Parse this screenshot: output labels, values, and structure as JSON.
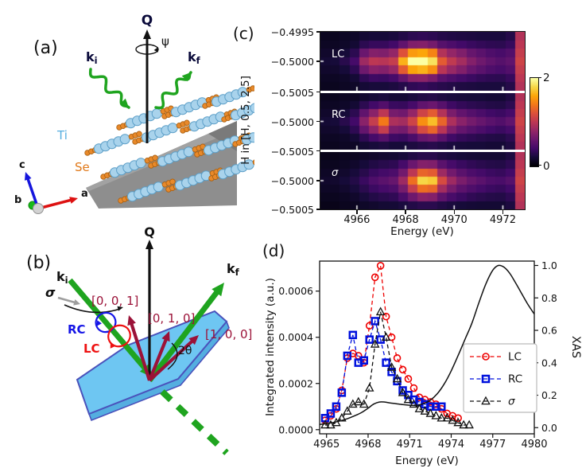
{
  "panel_a": {
    "label": "(a)",
    "q": "Q",
    "psi": "ψ",
    "ki_base": "k",
    "ki_sub": "i",
    "kf_base": "k",
    "kf_sub": "f",
    "ti": "Ti",
    "se": "Se",
    "axis_c": "c",
    "axis_a": "a",
    "axis_b": "b",
    "colors": {
      "ti_atom": "#a9d3ec",
      "ti_stroke": "#5b9ec7",
      "se_atom": "#e8892a",
      "se_stroke": "#a86012",
      "green": "#1fa41f",
      "label_navy": "#0a0a3a",
      "ti_label": "#56aee0",
      "se_label": "#e07818",
      "wedge": "#8e8e8e",
      "wedge_dark": "#7a7a7a",
      "wedge_light": "#a2a2a2",
      "axis_c_color": "#1515dd",
      "axis_a_color": "#dd1111",
      "axis_b_color": "#18bb18"
    }
  },
  "panel_b": {
    "label": "(b)",
    "q": "Q",
    "ki_base": "k",
    "ki_sub": "i",
    "kf_base": "k",
    "kf_sub": "f",
    "sigma": "σ",
    "rc": "RC",
    "lc": "LC",
    "dir_001": "[0, 0, 1]",
    "dir_010": "[0, 1, 0]",
    "dir_100": "[1, 0, 0]",
    "two_theta": "2θ",
    "colors": {
      "plate_fill": "#6ec6f2",
      "plate_side": "#54aee0",
      "plate_stroke": "#4a52bb",
      "green": "#1fa41f",
      "maroon": "#9b1238",
      "rc_blue": "#1515e6",
      "lc_red": "#ee1111",
      "sigma_gray": "#9e9e9e"
    }
  },
  "panel_c": {
    "label": "(c)"
  },
  "panel_d": {
    "label": "(d)"
  },
  "chart_data": [
    {
      "type": "heatmap",
      "panel": "c",
      "xlabel": "Energy (eV)",
      "ylabel": "H in [H, 0.5, 2.5]",
      "x_range": [
        4964.5,
        4972.9
      ],
      "x_ticks": [
        4966,
        4968,
        4970,
        4972
      ],
      "x_tick_labels": [
        "4966",
        "4968",
        "4970",
        "4972"
      ],
      "y_tick_labels": [
        "−0.4995",
        "−0.5000",
        "−0.5005",
        "−0.5000",
        "−0.5005",
        "−0.5000",
        "−0.5005"
      ],
      "colorbar": {
        "min": 0,
        "max": 2,
        "tick_labels": [
          "2",
          "0"
        ],
        "colormap": "inferno"
      },
      "energies": [
        4964.7,
        4965.1,
        4965.5,
        4965.9,
        4966.3,
        4966.7,
        4967.1,
        4967.5,
        4967.9,
        4968.3,
        4968.7,
        4969.1,
        4969.5,
        4969.9,
        4970.3,
        4970.7,
        4971.1,
        4971.5,
        4971.9,
        4972.3,
        4972.7
      ],
      "h_values": [
        -0.4995,
        -0.49967,
        -0.49983,
        -0.5,
        -0.50017,
        -0.50033,
        -0.5005
      ],
      "panels": [
        {
          "label": "LC",
          "grid": [
            [
              0.1,
              0.1,
              0.12,
              0.14,
              0.18,
              0.2,
              0.2,
              0.22,
              0.26,
              0.3,
              0.32,
              0.3,
              0.27,
              0.25,
              0.24,
              0.23,
              0.22,
              0.22,
              0.22,
              0.27,
              0.95
            ],
            [
              0.12,
              0.12,
              0.14,
              0.18,
              0.3,
              0.35,
              0.35,
              0.4,
              0.55,
              0.7,
              0.72,
              0.65,
              0.5,
              0.45,
              0.4,
              0.36,
              0.33,
              0.31,
              0.3,
              0.35,
              1.0
            ],
            [
              0.15,
              0.16,
              0.2,
              0.3,
              0.6,
              0.72,
              0.7,
              0.8,
              1.2,
              1.55,
              1.6,
              1.45,
              0.95,
              0.8,
              0.7,
              0.58,
              0.52,
              0.46,
              0.43,
              0.48,
              1.05
            ],
            [
              0.18,
              0.2,
              0.28,
              0.42,
              0.85,
              1.0,
              0.98,
              1.05,
              1.65,
              2.0,
              2.0,
              1.85,
              1.25,
              1.02,
              0.88,
              0.72,
              0.62,
              0.55,
              0.5,
              0.55,
              1.1
            ],
            [
              0.15,
              0.16,
              0.2,
              0.31,
              0.62,
              0.75,
              0.72,
              0.82,
              1.25,
              1.6,
              1.65,
              1.5,
              0.98,
              0.82,
              0.71,
              0.59,
              0.52,
              0.46,
              0.43,
              0.48,
              1.05
            ],
            [
              0.12,
              0.12,
              0.14,
              0.19,
              0.32,
              0.38,
              0.37,
              0.42,
              0.58,
              0.74,
              0.76,
              0.68,
              0.52,
              0.46,
              0.41,
              0.37,
              0.33,
              0.31,
              0.3,
              0.35,
              1.0
            ],
            [
              0.1,
              0.1,
              0.12,
              0.14,
              0.19,
              0.21,
              0.21,
              0.23,
              0.27,
              0.32,
              0.34,
              0.31,
              0.28,
              0.26,
              0.24,
              0.23,
              0.22,
              0.22,
              0.22,
              0.27,
              0.95
            ]
          ]
        },
        {
          "label": "RC",
          "grid": [
            [
              0.1,
              0.1,
              0.12,
              0.13,
              0.17,
              0.2,
              0.22,
              0.19,
              0.19,
              0.22,
              0.25,
              0.27,
              0.24,
              0.22,
              0.21,
              0.2,
              0.2,
              0.19,
              0.19,
              0.24,
              0.95
            ],
            [
              0.12,
              0.12,
              0.14,
              0.18,
              0.3,
              0.4,
              0.48,
              0.36,
              0.35,
              0.42,
              0.55,
              0.6,
              0.5,
              0.38,
              0.33,
              0.3,
              0.28,
              0.26,
              0.25,
              0.3,
              1.0
            ],
            [
              0.15,
              0.16,
              0.2,
              0.3,
              0.55,
              0.75,
              1.0,
              0.66,
              0.63,
              0.8,
              1.1,
              1.25,
              0.95,
              0.68,
              0.56,
              0.49,
              0.44,
              0.39,
              0.37,
              0.42,
              1.05
            ],
            [
              0.18,
              0.2,
              0.28,
              0.4,
              0.75,
              1.05,
              1.4,
              0.92,
              0.88,
              1.1,
              1.5,
              1.7,
              1.3,
              0.92,
              0.75,
              0.65,
              0.58,
              0.52,
              0.48,
              0.55,
              1.1
            ],
            [
              0.15,
              0.16,
              0.2,
              0.31,
              0.57,
              0.78,
              1.05,
              0.68,
              0.65,
              0.83,
              1.15,
              1.3,
              0.98,
              0.7,
              0.57,
              0.5,
              0.45,
              0.4,
              0.37,
              0.42,
              1.05
            ],
            [
              0.12,
              0.12,
              0.14,
              0.19,
              0.31,
              0.42,
              0.5,
              0.38,
              0.36,
              0.44,
              0.58,
              0.63,
              0.52,
              0.39,
              0.34,
              0.31,
              0.28,
              0.26,
              0.25,
              0.3,
              1.0
            ],
            [
              0.1,
              0.1,
              0.12,
              0.13,
              0.18,
              0.21,
              0.23,
              0.2,
              0.2,
              0.23,
              0.26,
              0.28,
              0.25,
              0.22,
              0.21,
              0.2,
              0.2,
              0.19,
              0.19,
              0.24,
              0.95
            ]
          ]
        },
        {
          "label": "σ",
          "grid": [
            [
              0.08,
              0.08,
              0.1,
              0.11,
              0.13,
              0.15,
              0.17,
              0.18,
              0.21,
              0.25,
              0.28,
              0.28,
              0.24,
              0.22,
              0.2,
              0.19,
              0.18,
              0.18,
              0.18,
              0.23,
              0.95
            ],
            [
              0.1,
              0.1,
              0.12,
              0.15,
              0.2,
              0.25,
              0.28,
              0.31,
              0.42,
              0.6,
              0.72,
              0.7,
              0.52,
              0.42,
              0.36,
              0.32,
              0.29,
              0.27,
              0.26,
              0.31,
              1.0
            ],
            [
              0.13,
              0.13,
              0.16,
              0.21,
              0.28,
              0.36,
              0.41,
              0.45,
              0.64,
              1.0,
              1.3,
              1.25,
              0.85,
              0.64,
              0.52,
              0.45,
              0.41,
              0.37,
              0.35,
              0.4,
              1.05
            ],
            [
              0.15,
              0.16,
              0.2,
              0.26,
              0.36,
              0.46,
              0.52,
              0.58,
              0.85,
              1.35,
              1.8,
              1.75,
              1.15,
              0.85,
              0.68,
              0.58,
              0.52,
              0.46,
              0.44,
              0.5,
              1.1
            ],
            [
              0.13,
              0.13,
              0.16,
              0.21,
              0.29,
              0.37,
              0.42,
              0.46,
              0.66,
              1.05,
              1.35,
              1.3,
              0.88,
              0.66,
              0.53,
              0.46,
              0.41,
              0.37,
              0.35,
              0.4,
              1.05
            ],
            [
              0.1,
              0.1,
              0.12,
              0.15,
              0.21,
              0.26,
              0.29,
              0.32,
              0.44,
              0.62,
              0.75,
              0.72,
              0.54,
              0.43,
              0.37,
              0.32,
              0.29,
              0.27,
              0.26,
              0.31,
              1.0
            ],
            [
              0.08,
              0.08,
              0.1,
              0.11,
              0.14,
              0.16,
              0.18,
              0.19,
              0.22,
              0.26,
              0.29,
              0.29,
              0.25,
              0.22,
              0.2,
              0.19,
              0.18,
              0.18,
              0.18,
              0.23,
              0.95
            ]
          ]
        }
      ]
    },
    {
      "type": "line",
      "panel": "d",
      "xlabel": "Energy (eV)",
      "ylabel_left": "Integrated intensity (a.u.)",
      "ylabel_right": "XAS",
      "xlim": [
        4964.5,
        4980
      ],
      "ylim_left": [
        -1.8e-05,
        0.00073
      ],
      "ylim_right": [
        -0.038,
        1.027
      ],
      "x_ticks": [
        4965,
        4968,
        4971,
        4974,
        4977,
        4980
      ],
      "x_tick_labels": [
        "4965",
        "4968",
        "4971",
        "4974",
        "4977",
        "4980"
      ],
      "y_ticks_left": [
        0,
        0.0002,
        0.0004,
        0.0006
      ],
      "y_tick_labels_left": [
        "0.0000",
        "0.0002",
        "0.0004",
        "0.0006"
      ],
      "y_ticks_right": [
        0,
        0.2,
        0.4,
        0.6,
        0.8,
        1.0
      ],
      "y_tick_labels_right": [
        "0.0",
        "0.2",
        "0.4",
        "0.6",
        "0.8",
        "1.0"
      ],
      "legend": [
        "LC",
        "RC",
        "σ"
      ],
      "series": [
        {
          "name": "LC",
          "axis": "left",
          "color": "#ee0000",
          "marker": "circle",
          "linestyle": "dashed",
          "x": [
            4964.9,
            4965.3,
            4965.7,
            4966.1,
            4966.5,
            4966.9,
            4967.3,
            4967.7,
            4968.1,
            4968.5,
            4968.9,
            4969.3,
            4969.7,
            4970.1,
            4970.5,
            4970.9,
            4971.3,
            4971.7,
            4972.1,
            4972.5,
            4972.9,
            4973.3,
            4973.7,
            4974.1,
            4974.5
          ],
          "y": [
            4e-05,
            6e-05,
            9e-05,
            0.00017,
            0.00031,
            0.00033,
            0.00032,
            0.00029,
            0.00045,
            0.00066,
            0.00071,
            0.00049,
            0.0004,
            0.00031,
            0.00026,
            0.00022,
            0.00018,
            0.00014,
            0.00013,
            0.00012,
            0.00011,
            9e-05,
            7e-05,
            6e-05,
            5e-05
          ]
        },
        {
          "name": "RC",
          "axis": "left",
          "color": "#0011dd",
          "marker": "square",
          "linestyle": "dashed",
          "x": [
            4964.9,
            4965.3,
            4965.7,
            4966.1,
            4966.5,
            4966.9,
            4967.3,
            4967.7,
            4968.1,
            4968.5,
            4968.9,
            4969.3,
            4969.7,
            4970.1,
            4970.5,
            4970.9,
            4971.3,
            4971.7,
            4972.1,
            4972.5,
            4972.9,
            4973.3
          ],
          "y": [
            5e-05,
            7e-05,
            0.0001,
            0.00016,
            0.00032,
            0.00041,
            0.00029,
            0.0003,
            0.00039,
            0.00047,
            0.00039,
            0.00029,
            0.00025,
            0.00021,
            0.00017,
            0.00015,
            0.00013,
            0.00012,
            0.00011,
            0.0001,
            0.0001,
            0.0001
          ]
        },
        {
          "name": "σ",
          "axis": "left",
          "color": "#111111",
          "marker": "triangle",
          "linestyle": "dashed",
          "x": [
            4964.9,
            4965.3,
            4965.7,
            4966.1,
            4966.5,
            4966.9,
            4967.3,
            4967.7,
            4968.1,
            4968.5,
            4968.9,
            4969.3,
            4969.7,
            4970.1,
            4970.5,
            4970.9,
            4971.3,
            4971.7,
            4972.1,
            4972.5,
            4972.9,
            4973.3,
            4973.7,
            4974.1,
            4974.5,
            4974.9,
            4975.3
          ],
          "y": [
            2e-05,
            2e-05,
            3e-05,
            5e-05,
            8e-05,
            0.00011,
            0.00012,
            0.00011,
            0.00018,
            0.00037,
            0.00051,
            0.0004,
            0.00027,
            0.00022,
            0.00016,
            0.00013,
            0.00011,
            9e-05,
            8e-05,
            7e-05,
            6e-05,
            5e-05,
            5e-05,
            4e-05,
            3e-05,
            2e-05,
            2e-05
          ]
        },
        {
          "name": "XAS",
          "axis": "right",
          "color": "#111111",
          "marker": "none",
          "linestyle": "solid",
          "x": [
            4964.5,
            4965,
            4965.5,
            4966,
            4966.5,
            4967,
            4967.5,
            4968,
            4968.4,
            4968.8,
            4969.2,
            4969.6,
            4970,
            4970.5,
            4971,
            4971.5,
            4972,
            4972.5,
            4973,
            4973.5,
            4974,
            4974.5,
            4975,
            4975.5,
            4976,
            4976.5,
            4977,
            4977.4,
            4977.8,
            4978.2,
            4978.6,
            4979,
            4979.5,
            4980
          ],
          "y": [
            0.02,
            0.025,
            0.032,
            0.042,
            0.055,
            0.072,
            0.092,
            0.12,
            0.145,
            0.158,
            0.158,
            0.152,
            0.148,
            0.142,
            0.138,
            0.137,
            0.148,
            0.17,
            0.21,
            0.27,
            0.35,
            0.445,
            0.545,
            0.645,
            0.77,
            0.885,
            0.97,
            1.0,
            0.99,
            0.955,
            0.9,
            0.84,
            0.765,
            0.7
          ]
        }
      ]
    }
  ]
}
